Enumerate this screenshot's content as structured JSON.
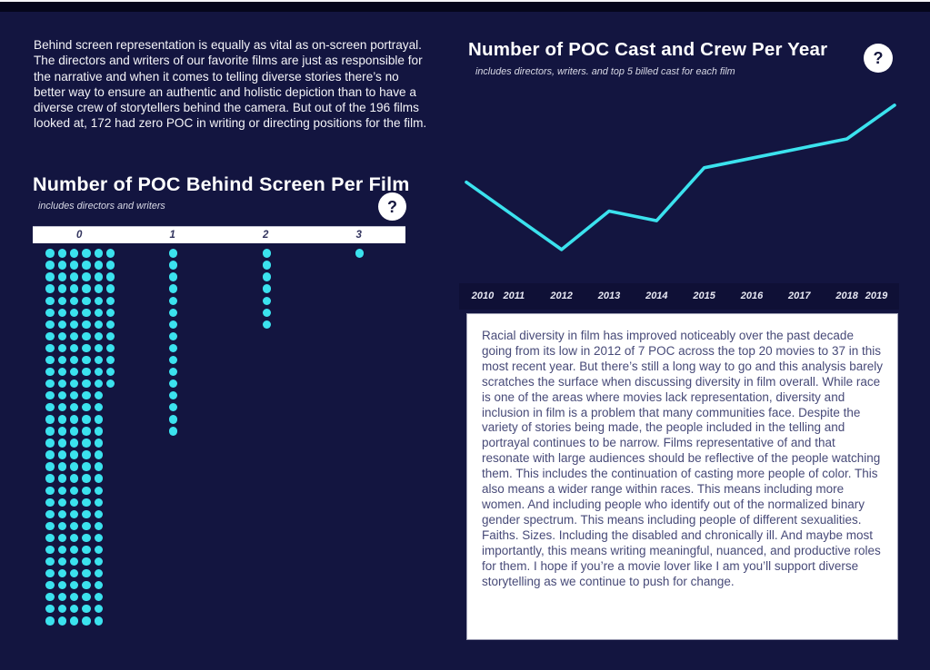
{
  "ui": {
    "help_glyph": "?",
    "colors": {
      "background": "#131540",
      "accent": "#3be2ee",
      "panel": "#ffffff",
      "box_text": "#474a78"
    }
  },
  "left_panel": {
    "intro_text": "Behind screen representation is equally as vital as on-screen portrayal. The directors and writers of our favorite films are just as responsible for the narrative and when it comes to telling diverse stories there’s no better way to ensure an authentic and holistic depiction than to have a diverse crew of storytellers behind the camera. But out of the 196 films looked at, 172 had zero POC in writing or directing positions for the film."
  },
  "right_panel": {
    "analysis_text": "Racial diversity in film has improved noticeably over the past decade going from its low in 2012 of 7 POC across the top 20 movies to 37 in this most recent year. But there’s still a long way to go and this analysis barely scratches the surface when discussing diversity in film overall. While race is one of the areas where movies lack representation, diversity and inclusion in film is a problem that many communities face. Despite the variety of stories being made, the people included in the telling and portrayal continues to be narrow. Films representative of and that resonate with large audiences should be reflective of the people watching them. This includes the continuation of casting more people of color. This also means a wider range within races. This means including more women. And including people who identify out of the normalized binary gender spectrum. This means including people of different sexualities. Faiths. Sizes. Including the disabled and chronically ill. And maybe most importantly, this means writing meaningful, nuanced, and productive roles for them. I hope if you’re a movie lover like I am you’ll support diverse storytelling as we continue to push for change."
  },
  "chart_data": [
    {
      "type": "dot-plot",
      "title": "Number of POC Behind Screen Per Film",
      "subtitle": "includes directors and writers",
      "categories": [
        "0",
        "1",
        "2",
        "3"
      ],
      "values": [
        172,
        16,
        7,
        1
      ],
      "total_films": 196,
      "dot_color": "#3be2ee",
      "wrap": {
        "full_cols": 6,
        "full_rows": 12,
        "tail_cols": 5
      }
    },
    {
      "type": "line",
      "title": "Number of POC Cast and Crew Per Year",
      "subtitle": "includes directors, writers. and top 5 billed cast for each film",
      "x": [
        "2010",
        "2011",
        "2012",
        "2013",
        "2014",
        "2015",
        "2016",
        "2017",
        "2018",
        "2019"
      ],
      "values": [
        21,
        14,
        7,
        15,
        13,
        24,
        26,
        28,
        30,
        37
      ],
      "ylim": [
        0,
        40
      ],
      "line_color": "#3be2ee",
      "grid": false,
      "legend": false
    }
  ]
}
